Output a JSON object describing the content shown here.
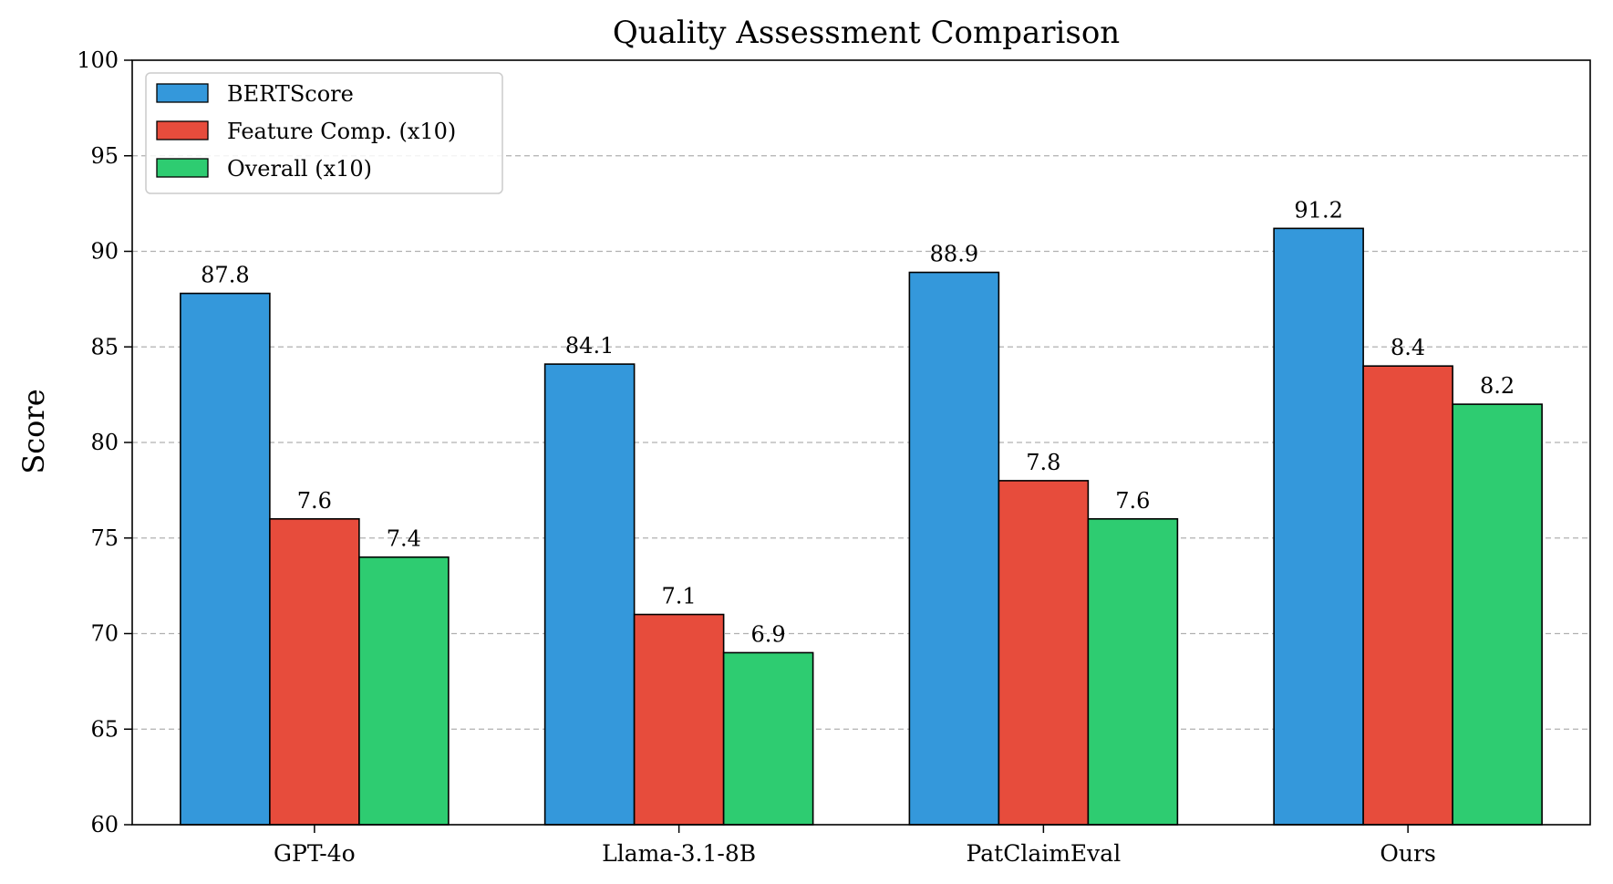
{
  "chart_data": {
    "type": "bar",
    "title": "Quality Assessment Comparison",
    "xlabel": "",
    "ylabel": "Score",
    "ylim": [
      60,
      100
    ],
    "yticks": [
      60,
      65,
      70,
      75,
      80,
      85,
      90,
      95,
      100
    ],
    "grid": "y-dashed",
    "legend_position": "top-left",
    "categories": [
      "GPT-4o",
      "Llama-3.1-8B",
      "PatClaimEval",
      "Ours"
    ],
    "series": [
      {
        "name": "BERTScore",
        "color": "#3498db",
        "values": [
          87.8,
          84.1,
          88.9,
          91.2
        ],
        "labels": [
          "87.8",
          "84.1",
          "88.9",
          "91.2"
        ]
      },
      {
        "name": "Feature Comp. (x10)",
        "color": "#e74c3c",
        "values": [
          76,
          71,
          78,
          84
        ],
        "labels": [
          "7.6",
          "7.1",
          "7.8",
          "8.4"
        ]
      },
      {
        "name": "Overall (x10)",
        "color": "#2ecc71",
        "values": [
          74,
          69,
          76,
          82
        ],
        "labels": [
          "7.4",
          "6.9",
          "7.6",
          "8.2"
        ]
      }
    ]
  }
}
